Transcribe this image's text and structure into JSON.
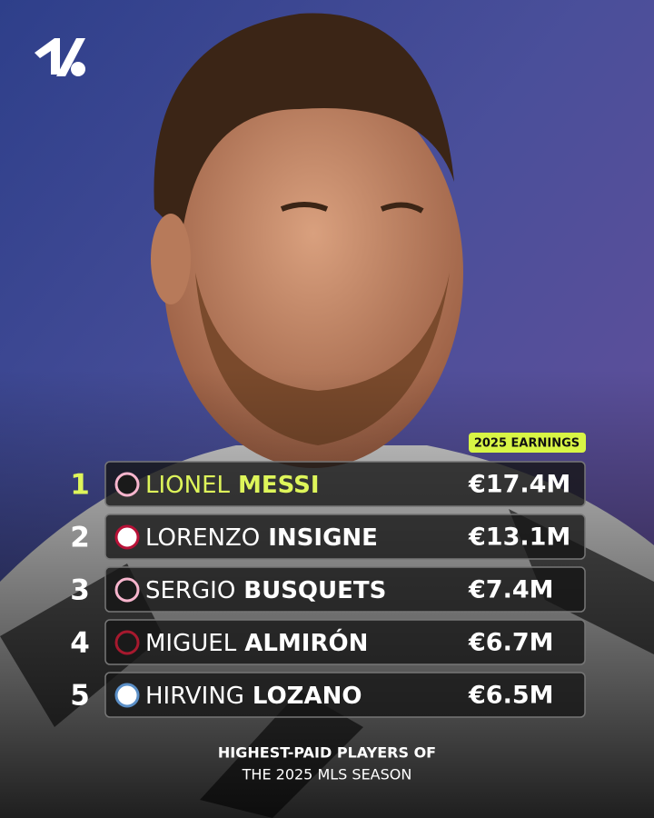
{
  "badge": "2025 EARNINGS",
  "rows": [
    {
      "rank": 1,
      "first_name": "LIONEL",
      "last_name": "MESSI",
      "earnings": "€17.4M"
    },
    {
      "rank": 2,
      "first_name": "LORENZO",
      "last_name": "INSIGNE",
      "earnings": "€13.1M"
    },
    {
      "rank": 3,
      "first_name": "SERGIO",
      "last_name": "BUSQUETS",
      "earnings": "€7.4M"
    },
    {
      "rank": 4,
      "first_name": "MIGUEL",
      "last_name": "ALMIRÓN",
      "earnings": "€6.7M"
    },
    {
      "rank": 5,
      "first_name": "HIRVING",
      "last_name": "LOZANO",
      "earnings": "€6.5M"
    }
  ],
  "footer": {
    "line1": "HIGHEST-PAID PLAYERS OF",
    "line2": "THE 2025 MLS SEASON"
  }
}
